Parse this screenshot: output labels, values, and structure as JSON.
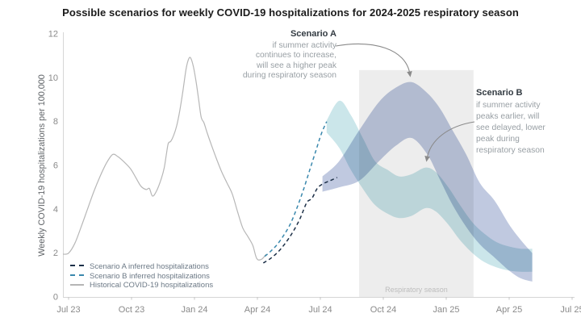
{
  "title": "Possible scenarios for weekly COVID-19 hospitalizations for 2024-2025 respiratory season",
  "chart_data": {
    "type": "area",
    "title": "Possible scenarios for weekly COVID-19 hospitalizations for 2024-2025 respiratory season",
    "xlabel": "",
    "ylabel": "Weekly COVID-19 hospitalizations per 100,000",
    "x_unit": "months since Jul 2023",
    "xlim": [
      0,
      24
    ],
    "ylim": [
      0,
      12
    ],
    "yticks": [
      0,
      2,
      4,
      6,
      8,
      10,
      12
    ],
    "xticks": [
      "Jul 23",
      "Oct 23",
      "Jan 24",
      "Apr 24",
      "Jul 24",
      "Oct 24",
      "Jan 25",
      "Apr 25",
      "Jul 25"
    ],
    "grid": false,
    "legend_position": "lower-left",
    "season_band": {
      "label": "Respiratory season",
      "from_month": 13.85,
      "to_month": 19.3,
      "top_value": 10.35,
      "color": "#ededed",
      "label_color": "#bdbdbd"
    },
    "series": [
      {
        "name": "Historical COVID-19 hospitalizations",
        "kind": "line",
        "style": "solid",
        "color": "#b7b7b7",
        "points": [
          [
            -0.27,
            1.95
          ],
          [
            0,
            2.0
          ],
          [
            0.3,
            2.45
          ],
          [
            0.6,
            3.2
          ],
          [
            0.9,
            4.0
          ],
          [
            1.2,
            4.8
          ],
          [
            1.5,
            5.5
          ],
          [
            1.8,
            6.1
          ],
          [
            2.1,
            6.5
          ],
          [
            2.35,
            6.4
          ],
          [
            2.6,
            6.2
          ],
          [
            2.95,
            5.85
          ],
          [
            3.2,
            5.45
          ],
          [
            3.45,
            5.05
          ],
          [
            3.7,
            4.9
          ],
          [
            3.85,
            4.95
          ],
          [
            4.0,
            4.6
          ],
          [
            4.2,
            4.85
          ],
          [
            4.42,
            5.4
          ],
          [
            4.56,
            5.9
          ],
          [
            4.66,
            6.5
          ],
          [
            4.75,
            7.0
          ],
          [
            4.87,
            7.1
          ],
          [
            5.0,
            7.35
          ],
          [
            5.15,
            7.8
          ],
          [
            5.3,
            8.5
          ],
          [
            5.45,
            9.4
          ],
          [
            5.6,
            10.4
          ],
          [
            5.72,
            10.85
          ],
          [
            5.82,
            10.9
          ],
          [
            5.95,
            10.5
          ],
          [
            6.08,
            9.8
          ],
          [
            6.2,
            9.0
          ],
          [
            6.32,
            8.2
          ],
          [
            6.45,
            7.95
          ],
          [
            6.6,
            7.5
          ],
          [
            6.8,
            6.95
          ],
          [
            7.05,
            6.3
          ],
          [
            7.3,
            5.7
          ],
          [
            7.55,
            5.2
          ],
          [
            7.8,
            4.7
          ],
          [
            8.05,
            3.9
          ],
          [
            8.3,
            3.15
          ],
          [
            8.55,
            2.75
          ],
          [
            8.78,
            2.35
          ],
          [
            8.97,
            1.75
          ],
          [
            9.2,
            1.72
          ],
          [
            9.42,
            1.95
          ]
        ]
      },
      {
        "name": "Scenario A inferred hospitalizations",
        "kind": "line",
        "style": "dashed",
        "color": "#1d3048",
        "points": [
          [
            9.28,
            1.55
          ],
          [
            9.62,
            1.75
          ],
          [
            9.98,
            2.05
          ],
          [
            10.33,
            2.45
          ],
          [
            10.68,
            2.95
          ],
          [
            11.02,
            3.55
          ],
          [
            11.35,
            4.3
          ],
          [
            11.6,
            4.5
          ],
          [
            11.85,
            4.95
          ],
          [
            12.1,
            5.15
          ],
          [
            12.45,
            5.3
          ],
          [
            12.8,
            5.45
          ]
        ]
      },
      {
        "name": "Scenario B inferred hospitalizations",
        "kind": "line",
        "style": "dashed",
        "color": "#3a88ad",
        "points": [
          [
            9.35,
            1.85
          ],
          [
            9.65,
            2.1
          ],
          [
            9.95,
            2.4
          ],
          [
            10.28,
            2.85
          ],
          [
            10.58,
            3.35
          ],
          [
            10.88,
            4.05
          ],
          [
            11.18,
            4.85
          ],
          [
            11.48,
            5.75
          ],
          [
            11.78,
            6.65
          ],
          [
            12.05,
            7.45
          ],
          [
            12.3,
            8.0
          ]
        ]
      },
      {
        "name": "Scenario A projection band",
        "kind": "band",
        "color": "#c0c9e0",
        "points": [
          [
            12.1,
            5.5,
            4.8
          ],
          [
            12.9,
            6.2,
            5.0
          ],
          [
            13.85,
            7.6,
            5.3
          ],
          [
            14.8,
            8.9,
            6.2
          ],
          [
            15.6,
            9.55,
            6.9
          ],
          [
            16.35,
            9.8,
            7.25
          ],
          [
            17.1,
            9.3,
            6.5
          ],
          [
            17.7,
            8.6,
            5.35
          ],
          [
            18.3,
            7.6,
            4.2
          ],
          [
            18.95,
            6.5,
            3.2
          ],
          [
            19.6,
            5.2,
            2.4
          ],
          [
            20.3,
            4.4,
            1.8
          ],
          [
            21.0,
            3.3,
            1.2
          ],
          [
            21.55,
            2.6,
            0.85
          ],
          [
            22.1,
            2.0,
            0.7
          ]
        ]
      },
      {
        "name": "Scenario B projection band",
        "kind": "band",
        "color": "#cbe6ea",
        "points": [
          [
            12.3,
            8.05,
            7.5
          ],
          [
            12.9,
            8.95,
            6.8
          ],
          [
            13.45,
            8.3,
            5.8
          ],
          [
            14.05,
            7.2,
            4.9
          ],
          [
            14.6,
            6.2,
            4.2
          ],
          [
            15.2,
            5.8,
            3.8
          ],
          [
            15.75,
            5.5,
            3.6
          ],
          [
            16.35,
            5.6,
            3.7
          ],
          [
            17.0,
            5.9,
            4.05
          ],
          [
            17.5,
            5.7,
            3.9
          ],
          [
            18.1,
            5.0,
            3.3
          ],
          [
            18.65,
            4.2,
            2.6
          ],
          [
            19.25,
            3.4,
            2.0
          ],
          [
            19.8,
            2.9,
            1.6
          ],
          [
            20.4,
            2.5,
            1.35
          ],
          [
            21.0,
            2.3,
            1.2
          ],
          [
            21.55,
            2.2,
            1.15
          ],
          [
            22.1,
            2.2,
            1.15
          ]
        ]
      }
    ],
    "annotations": [
      {
        "title": "Scenario A",
        "lines": [
          "if summer activity",
          "continues to increase,",
          "will see a higher peak",
          "during respiratory season"
        ]
      },
      {
        "title": "Scenario B",
        "lines": [
          "if summer activity",
          "peaks earlier, will",
          "see delayed, lower",
          "peak during",
          "respiratory season"
        ]
      }
    ]
  },
  "legend": {
    "items": [
      {
        "label": "Scenario A inferred hospitalizations",
        "color": "#1d3048",
        "style": "dashed"
      },
      {
        "label": "Scenario B inferred hospitalizations",
        "color": "#3a88ad",
        "style": "dashed"
      },
      {
        "label": "Historical COVID-19 hospitalizations",
        "color": "#b5b5b5",
        "style": "solid"
      }
    ]
  },
  "colors": {
    "axis_line": "#d6d6d6",
    "tick_label": "#8a8a8a",
    "annotation_arrow": "#8a8a8a"
  }
}
